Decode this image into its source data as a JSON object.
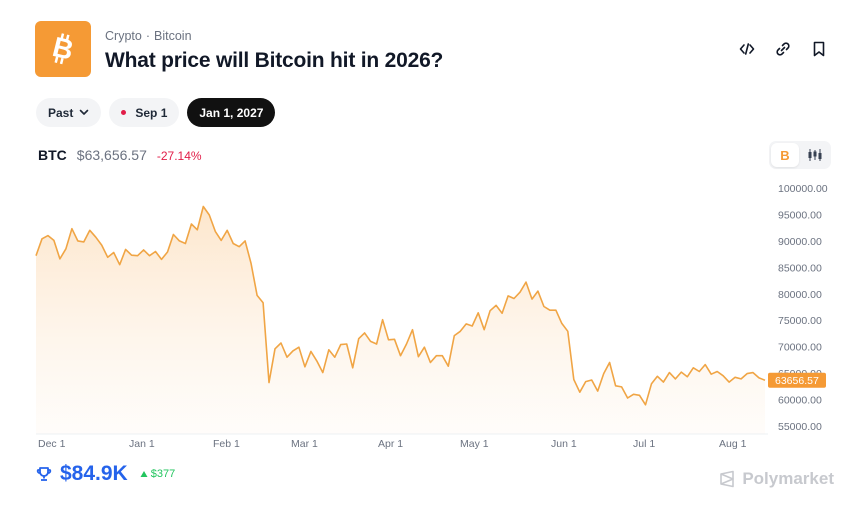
{
  "header": {
    "breadcrumb": [
      "Crypto",
      "Bitcoin"
    ],
    "breadcrumb_sep": "·",
    "title": "What price will Bitcoin hit in 2026?"
  },
  "icons": {
    "logo": "bitcoin-icon",
    "embed": "code-icon",
    "link": "link-icon",
    "bookmark": "bookmark-icon",
    "toggle_line": "bitcoin-icon",
    "toggle_candle": "candlestick-icon",
    "volume": "trophy-icon",
    "brand": "polymarket-icon"
  },
  "filters": {
    "past_label": "Past",
    "sep_label": "Sep 1",
    "jan_label": "Jan 1, 2027"
  },
  "ticker": {
    "symbol": "BTC",
    "price": "$63,656.57",
    "change": "-27.14%"
  },
  "colors": {
    "accent": "#f59a35",
    "line": "#f0a545",
    "negative": "#e11d48",
    "positive": "#22c55e",
    "volume": "#2563eb"
  },
  "chart_data": {
    "type": "area",
    "series": [
      {
        "values": [
          87200,
          90400,
          91000,
          90100,
          86600,
          88500,
          92300,
          90000,
          89800,
          92000,
          90700,
          89200,
          86900,
          87800,
          85500,
          88400,
          87300,
          87200,
          88300,
          87200,
          88000,
          86500,
          87900,
          91200,
          90000,
          89500,
          93200,
          92100,
          96500,
          94900,
          91800,
          90100,
          92000,
          89500,
          88900,
          90000,
          85700,
          79700,
          78300,
          63200,
          69600,
          70700,
          68000,
          69200,
          69900,
          66200,
          69100,
          67300,
          65100,
          69400,
          68000,
          70400,
          70500,
          66000,
          71500,
          72600,
          71000,
          70500,
          75100,
          71300,
          71400,
          68300,
          70500,
          73200,
          68100,
          69900,
          67000,
          68300,
          68300,
          66300,
          72100,
          72900,
          74300,
          73900,
          76400,
          73200,
          76800,
          77800,
          76300,
          79600,
          79100,
          80300,
          82200,
          79000,
          80500,
          77600,
          76900,
          76900,
          74400,
          72900,
          63800,
          61400,
          63400,
          63700,
          61600,
          64900,
          67000,
          62600,
          62400,
          60300,
          61000,
          60800,
          59000,
          63000,
          64400,
          63300,
          65100,
          63900,
          65200,
          64300,
          66000,
          65300,
          66600,
          64800,
          65300,
          64500,
          63300,
          64200,
          63900,
          64900,
          65100,
          64100,
          63656.57
        ]
      }
    ],
    "x_ticks": [
      "Dec 1",
      "Jan 1",
      "Feb 1",
      "Mar 1",
      "Apr 1",
      "May 1",
      "Jun 1",
      "Jul 1",
      "Aug 1"
    ],
    "y_ticks": [
      "100000.00",
      "95000.00",
      "90000.00",
      "85000.00",
      "80000.00",
      "75000.00",
      "70000.00",
      "65000.00",
      "60000.00",
      "55000.00"
    ],
    "last_value_label": "63656.57",
    "ylim": [
      55000,
      100000
    ],
    "grid": false
  },
  "footer": {
    "volume": "$84.9K",
    "delta": "$377",
    "brand": "Polymarket"
  }
}
